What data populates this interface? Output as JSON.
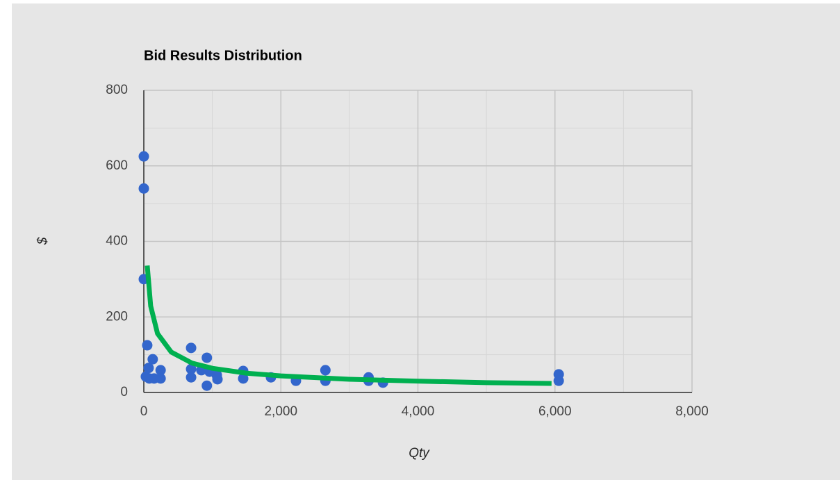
{
  "chart_data": {
    "type": "scatter",
    "title": "Bid Results Distribution",
    "x_label": "Qty",
    "y_label": "$",
    "series": [
      {
        "color": "#3366cc",
        "x": [
          0,
          0,
          0,
          50,
          130,
          70,
          30,
          80,
          150,
          245,
          245,
          690,
          690,
          690,
          840,
          920,
          920,
          960,
          1065,
          1075,
          1450,
          1450,
          1855,
          2220,
          2650,
          2650,
          3280,
          3280,
          3490,
          6055,
          6055
        ],
        "values": [
          625,
          540,
          300,
          125,
          88,
          65,
          42,
          37,
          37,
          59,
          37,
          118,
          62,
          40,
          59,
          92,
          18,
          55,
          46,
          35,
          57,
          37,
          40,
          31,
          59,
          31,
          40,
          31,
          26,
          48,
          31
        ]
      }
    ],
    "trendline": {
      "color": "#00b050",
      "x": [
        50,
        100,
        200,
        400,
        700,
        1000,
        1500,
        2000,
        3000,
        4000,
        5000,
        5950
      ],
      "values": [
        336,
        229,
        156,
        107,
        78,
        64,
        51,
        44,
        35,
        30,
        26,
        24
      ]
    },
    "xlim": [
      0,
      8000
    ],
    "xticks": [
      0,
      {
        "value": 2000,
        "label": "2,000"
      },
      {
        "value": 4000,
        "label": "4,000"
      },
      {
        "value": 6000,
        "label": "6,000"
      },
      {
        "value": 8000,
        "label": "8,000"
      }
    ],
    "xminorticks": [
      1000,
      3000,
      5000,
      7000
    ],
    "ylim": [
      0,
      800
    ],
    "yticks": [
      0,
      200,
      400,
      600,
      800
    ],
    "yminorticks": [
      100,
      300,
      500,
      700
    ],
    "grid": true
  }
}
